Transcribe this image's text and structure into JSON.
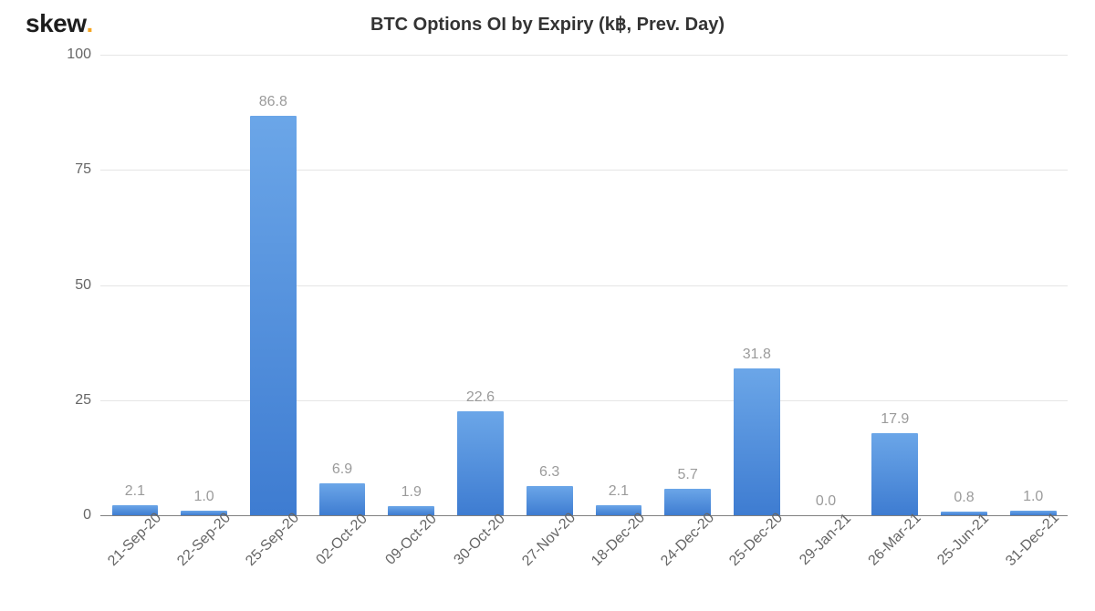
{
  "logo": {
    "text": "skew",
    "dot": "."
  },
  "title": "BTC Options OI by Expiry (k฿, Prev. Day)",
  "chart": {
    "type": "bar",
    "ylim": [
      0,
      100
    ],
    "yticks": [
      0,
      25,
      50,
      75,
      100
    ],
    "ytick_labels": [
      "0",
      "25",
      "50",
      "75",
      "100"
    ],
    "grid_color": "#e5e5e5",
    "axis_color": "#808080",
    "background_color": "#ffffff",
    "bar_width": 0.67,
    "bar_gradient_top": "#6ba6e8",
    "bar_gradient_bottom": "#3e7cd1",
    "label_color": "#9b9b9b",
    "label_fontsize": 16,
    "tick_label_color": "#666666",
    "tick_fontsize": 16,
    "title_color": "#333333",
    "title_fontsize": 20,
    "categories": [
      "21-Sep-20",
      "22-Sep-20",
      "25-Sep-20",
      "02-Oct-20",
      "09-Oct-20",
      "30-Oct-20",
      "27-Nov-20",
      "18-Dec-20",
      "24-Dec-20",
      "25-Dec-20",
      "29-Jan-21",
      "26-Mar-21",
      "25-Jun-21",
      "31-Dec-21"
    ],
    "values": [
      2.1,
      1.0,
      86.8,
      6.9,
      1.9,
      22.6,
      6.3,
      2.1,
      5.7,
      31.8,
      0.0,
      17.9,
      0.8,
      1.0
    ],
    "value_labels": [
      "2.1",
      "1.0",
      "86.8",
      "6.9",
      "1.9",
      "22.6",
      "6.3",
      "2.1",
      "5.7",
      "31.8",
      "0.0",
      "17.9",
      "0.8",
      "1.0"
    ]
  }
}
